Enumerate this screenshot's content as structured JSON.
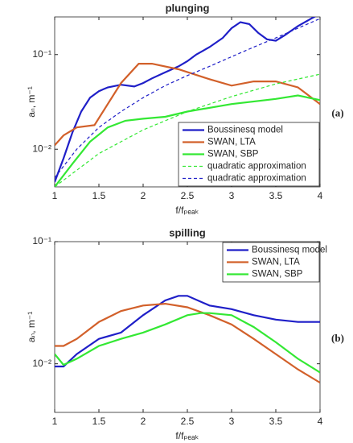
{
  "chart_data": [
    {
      "type": "line",
      "title": "plunging",
      "xlabel": "f/fₚₑₐₖ",
      "ylabel": "aₙ, m⁻¹",
      "annotation": "(a)",
      "log_y": true,
      "legend": "lower right",
      "xlim": [
        1,
        4
      ],
      "xticks": [
        1,
        1.5,
        2,
        2.5,
        3,
        3.5,
        4
      ],
      "ylim": [
        0.004,
        0.25
      ],
      "yticks": [
        {
          "value": 0.01,
          "label": "10⁻²"
        },
        {
          "value": 0.1,
          "label": "10⁻¹"
        }
      ],
      "series": [
        {
          "name": "Boussinesq model",
          "color": "#1f1fc8",
          "style": "solid",
          "x": [
            1,
            1.1,
            1.2,
            1.3,
            1.4,
            1.5,
            1.6,
            1.75,
            1.9,
            2,
            2.1,
            2.25,
            2.4,
            2.5,
            2.6,
            2.75,
            2.9,
            3,
            3.1,
            3.2,
            3.3,
            3.4,
            3.5,
            3.6,
            3.75,
            3.9,
            4
          ],
          "values": [
            0.0045,
            0.008,
            0.015,
            0.025,
            0.035,
            0.041,
            0.045,
            0.048,
            0.046,
            0.05,
            0.056,
            0.065,
            0.075,
            0.085,
            0.1,
            0.12,
            0.15,
            0.19,
            0.22,
            0.21,
            0.17,
            0.145,
            0.14,
            0.16,
            0.2,
            0.24,
            0.27
          ]
        },
        {
          "name": "SWAN, LTA",
          "color": "#d2602a",
          "style": "solid",
          "x": [
            1,
            1.1,
            1.25,
            1.45,
            1.6,
            1.75,
            1.95,
            2.1,
            2.4,
            2.75,
            3,
            3.25,
            3.5,
            3.75,
            4
          ],
          "values": [
            0.011,
            0.014,
            0.017,
            0.018,
            0.03,
            0.05,
            0.08,
            0.08,
            0.07,
            0.055,
            0.047,
            0.052,
            0.052,
            0.045,
            0.03
          ]
        },
        {
          "name": "SWAN, SBP",
          "color": "#33e833",
          "style": "solid",
          "x": [
            1,
            1.2,
            1.4,
            1.6,
            1.8,
            2,
            2.25,
            2.5,
            3,
            3.5,
            3.75,
            4
          ],
          "values": [
            0.004,
            0.007,
            0.012,
            0.017,
            0.02,
            0.021,
            0.022,
            0.025,
            0.03,
            0.034,
            0.037,
            0.033
          ]
        },
        {
          "name": "quadratic approximation",
          "color": "#33e833",
          "style": "dashed",
          "x": [
            1,
            1.5,
            2,
            2.5,
            3,
            3.5,
            4
          ],
          "values": [
            0.004,
            0.009,
            0.016,
            0.025,
            0.036,
            0.049,
            0.062
          ]
        },
        {
          "name": "quadratic approximation",
          "color": "#1f1fc8",
          "style": "dashed",
          "x": [
            1,
            1.25,
            1.5,
            1.75,
            2,
            2.25,
            2.5,
            2.75,
            3,
            3.25,
            3.5,
            3.75,
            4
          ],
          "values": [
            0.005,
            0.01,
            0.017,
            0.025,
            0.035,
            0.047,
            0.06,
            0.075,
            0.095,
            0.12,
            0.15,
            0.19,
            0.24
          ]
        }
      ]
    },
    {
      "type": "line",
      "title": "spilling",
      "xlabel": "f/fₚₑₐₖ",
      "ylabel": "aₙ, m⁻¹",
      "annotation": "(b)",
      "log_y": true,
      "legend": "upper right",
      "xlim": [
        1,
        4
      ],
      "xticks": [
        1,
        1.5,
        2,
        2.5,
        3,
        3.5,
        4
      ],
      "ylim": [
        0.004,
        0.1
      ],
      "yticks": [
        {
          "value": 0.01,
          "label": "10⁻²"
        },
        {
          "value": 0.1,
          "label": "10⁻¹"
        }
      ],
      "series": [
        {
          "name": "Boussinesq model",
          "color": "#1f1fc8",
          "style": "solid",
          "x": [
            1,
            1.1,
            1.25,
            1.5,
            1.75,
            2,
            2.25,
            2.4,
            2.5,
            2.75,
            3,
            3.25,
            3.5,
            3.75,
            4
          ],
          "values": [
            0.0095,
            0.0095,
            0.012,
            0.016,
            0.018,
            0.025,
            0.033,
            0.036,
            0.036,
            0.03,
            0.028,
            0.025,
            0.023,
            0.022,
            0.022
          ]
        },
        {
          "name": "SWAN, LTA",
          "color": "#d2602a",
          "style": "solid",
          "x": [
            1,
            1.1,
            1.25,
            1.5,
            1.75,
            2,
            2.25,
            2.5,
            2.75,
            3,
            3.25,
            3.5,
            3.75,
            4
          ],
          "values": [
            0.014,
            0.014,
            0.016,
            0.022,
            0.027,
            0.03,
            0.031,
            0.029,
            0.025,
            0.021,
            0.016,
            0.012,
            0.009,
            0.007
          ]
        },
        {
          "name": "SWAN, SBP",
          "color": "#33e833",
          "style": "solid",
          "x": [
            1,
            1.1,
            1.25,
            1.5,
            1.75,
            2,
            2.25,
            2.5,
            2.65,
            2.75,
            3,
            3.25,
            3.5,
            3.75,
            4
          ],
          "values": [
            0.012,
            0.0098,
            0.011,
            0.014,
            0.016,
            0.018,
            0.021,
            0.025,
            0.026,
            0.026,
            0.025,
            0.02,
            0.015,
            0.011,
            0.0085
          ]
        }
      ]
    }
  ]
}
